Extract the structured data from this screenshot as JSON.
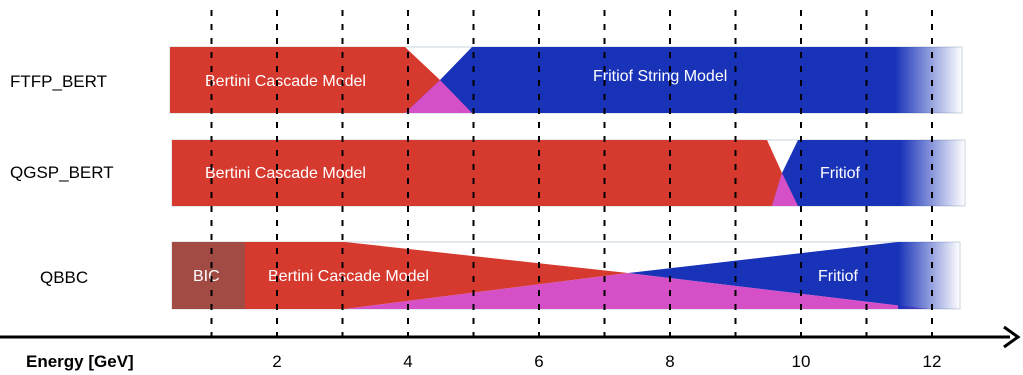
{
  "rows": [
    {
      "name": "FTFP_BERT",
      "models": [
        {
          "label": "Bertini Cascade Model"
        },
        {
          "label": "Fritiof String Model"
        }
      ],
      "overlap_gev": [
        4.0,
        5.0
      ]
    },
    {
      "name": "QGSP_BERT",
      "models": [
        {
          "label": "Bertini Cascade Model"
        },
        {
          "label": "Fritiof"
        }
      ],
      "overlap_gev": [
        9.5,
        10.0
      ]
    },
    {
      "name": "QBBC",
      "models": [
        {
          "label": "BIC"
        },
        {
          "label": "Bertini Cascade Model"
        },
        {
          "label": "Fritiof"
        }
      ],
      "overlap_gev": [
        3.0,
        12.0
      ]
    }
  ],
  "axis": {
    "label": "Energy [GeV]",
    "ticks": [
      "2",
      "4",
      "6",
      "8",
      "10",
      "12"
    ],
    "tick_values": [
      2,
      4,
      6,
      8,
      10,
      12
    ],
    "gridline_values": [
      1,
      2,
      3,
      4,
      5,
      6,
      7,
      8,
      9,
      10,
      11,
      12
    ]
  },
  "colors": {
    "bertini": "#d63a2f",
    "fritiof": "#1832b8",
    "overlap": "#d54fc6",
    "bic": "#a24a44",
    "text_on_bar": "#ffffff",
    "text": "#000000",
    "axis": "#000000",
    "band_outline": "#c9d3de"
  }
}
